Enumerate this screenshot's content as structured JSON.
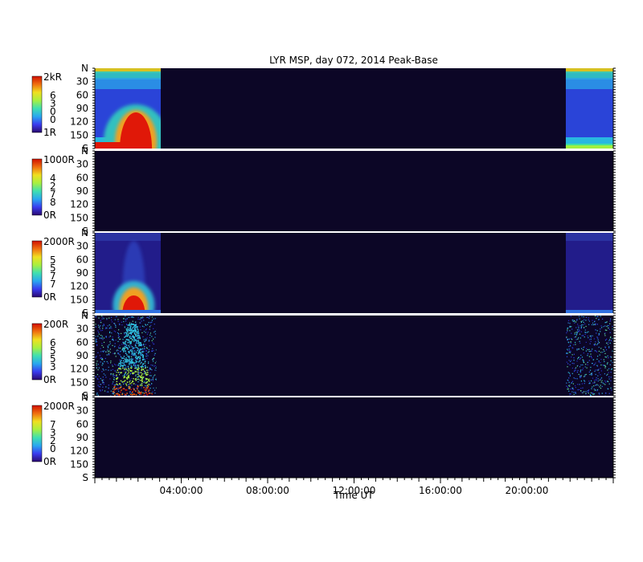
{
  "chart_data": {
    "type": "heatmap",
    "title": "LYR MSP, day 072, 2014 Peak-Base",
    "xlabel": "Time UT",
    "x_tick_labels": [
      "04:00:00",
      "08:00:00",
      "12:00:00",
      "16:00:00",
      "20:00:00"
    ],
    "x_range_hours": [
      0,
      24
    ],
    "y_range_deg": [
      0,
      180
    ],
    "y_tick_labels": [
      "N",
      "30",
      "60",
      "90",
      "120",
      "150",
      "S"
    ],
    "y_tick_values": [
      0,
      30,
      60,
      90,
      120,
      150,
      180
    ],
    "colormap": [
      "#2b0a70",
      "#3a3cf0",
      "#2aa8f0",
      "#40e0b0",
      "#a8f040",
      "#f0e020",
      "#f07010",
      "#d01000"
    ],
    "background_color": "#0c0626",
    "panels": [
      {
        "colorbar_max": "2kR",
        "colorbar_min": "1R",
        "colorbar_digits": [
          "6",
          "3",
          "0",
          "0"
        ],
        "data_windows_hours": [
          [
            0.0,
            3.05
          ],
          [
            21.8,
            24.0
          ]
        ],
        "activity_center_hours": 1.9
      },
      {
        "colorbar_max": "1000R",
        "colorbar_min": "0R",
        "colorbar_digits": [
          "4",
          "2",
          "7",
          "8"
        ],
        "data_windows_hours": [],
        "activity_center_hours": null
      },
      {
        "colorbar_max": "2000R",
        "colorbar_min": "0R",
        "colorbar_digits": [
          "5",
          "5",
          "7",
          "7"
        ],
        "data_windows_hours": [
          [
            0.0,
            3.05
          ],
          [
            21.8,
            24.0
          ]
        ],
        "activity_center_hours": 1.8
      },
      {
        "colorbar_max": "200R",
        "colorbar_min": "0R",
        "colorbar_digits": [
          "6",
          "5",
          "5",
          "3"
        ],
        "data_windows_hours": [
          [
            0.0,
            2.85
          ],
          [
            21.8,
            24.0
          ]
        ],
        "activity_center_hours": 1.7
      },
      {
        "colorbar_max": "2000R",
        "colorbar_min": "0R",
        "colorbar_digits": [
          "7",
          "3",
          "2",
          "0"
        ],
        "data_windows_hours": [],
        "activity_center_hours": null
      }
    ]
  }
}
